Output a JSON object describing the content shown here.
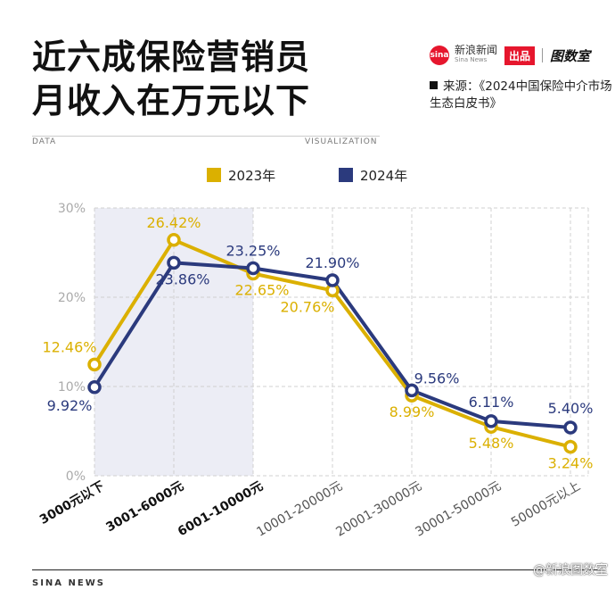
{
  "title_line1": "近六成保险营销员",
  "title_line2": "月收入在万元以下",
  "brand": {
    "name": "新浪新闻",
    "name_en": "Sina News",
    "badge": "出品",
    "sub": "图数室",
    "logo_text": "sina"
  },
  "source": {
    "prefix": "来源：",
    "text": "《2024中国保险中介市场生态白皮书》"
  },
  "tag_left": "DATA",
  "tag_right": "VISUALIZATION",
  "footer": "SINA NEWS",
  "weibo_tag": "@新浪图数室",
  "colors": {
    "y2023": "#dbb000",
    "y2024": "#2b3a7d",
    "highlight": "#ecedf5",
    "grid": "#d0d0d0"
  },
  "chart_data": {
    "type": "line",
    "categories": [
      "3000元以下",
      "3001-6000元",
      "6001-10000元",
      "10001-20000元",
      "20001-30000元",
      "30001-50000元",
      "50000元以上"
    ],
    "highlighted_categories": [
      0,
      1,
      2
    ],
    "ylim": [
      0,
      30
    ],
    "y_ticks": [
      0,
      10,
      20,
      30
    ],
    "y_tick_labels": [
      "0%",
      "10%",
      "20%",
      "30%"
    ],
    "legend_position": "top-center",
    "series": [
      {
        "name": "2023年",
        "values": [
          12.46,
          26.42,
          22.65,
          20.76,
          8.99,
          5.48,
          3.24
        ],
        "labels": [
          "12.46%",
          "26.42%",
          "22.65%",
          "20.76%",
          "8.99%",
          "5.48%",
          "3.24%"
        ]
      },
      {
        "name": "2024年",
        "values": [
          9.92,
          23.86,
          23.25,
          21.9,
          9.56,
          6.11,
          5.4
        ],
        "labels": [
          "9.92%",
          "23.86%",
          "23.25%",
          "21.90%",
          "9.56%",
          "6.11%",
          "5.40%"
        ]
      }
    ]
  }
}
